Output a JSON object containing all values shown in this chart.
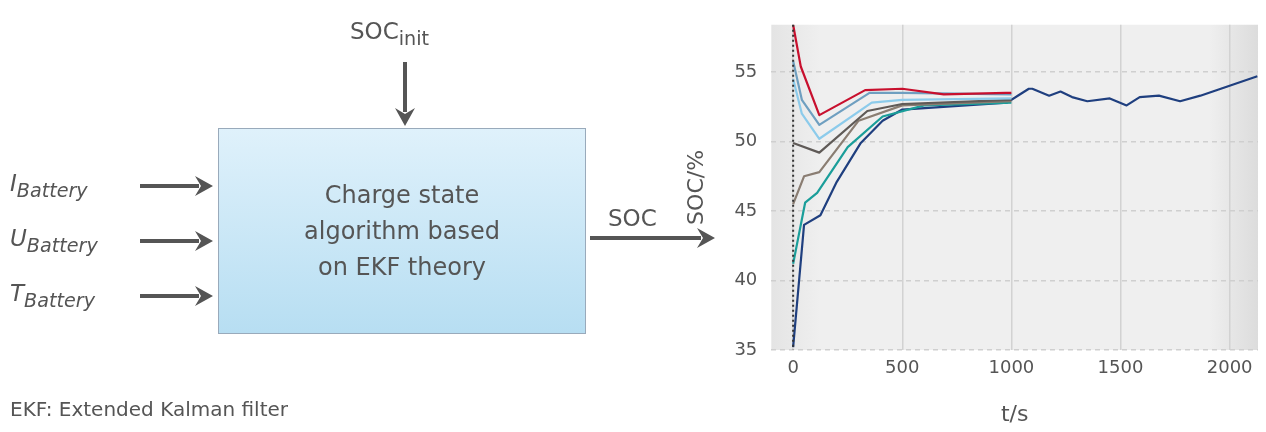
{
  "chart_data": {
    "type": "line",
    "xlabel": "t/s",
    "ylabel": "SOC/%",
    "xlim": [
      -100,
      2130
    ],
    "xticks": [
      0,
      500,
      1000,
      1500,
      2000
    ],
    "ylim": [
      35,
      58.4
    ],
    "yticks": [
      35,
      40,
      45,
      50,
      55
    ],
    "grid": true,
    "legend": false,
    "marker": "none",
    "line_style": "solid",
    "ref_lines": [
      {
        "axis": "x",
        "value": 0,
        "line_style": "dotted",
        "color": "#333333"
      }
    ],
    "annotations": [
      "SOC$_{init}$",
      "I$_{Battery}$",
      "U$_{Battery}$",
      "T$_{Battery}$",
      "Charge state algorithm based on EKF theory",
      "SOC",
      "EKF: Extended Kalman filter"
    ],
    "series": [
      {
        "color": "#c8102e",
        "x": [
          0,
          35,
          120,
          330,
          500,
          690,
          975,
          1000
        ],
        "values": [
          58.4,
          55.4,
          51.9,
          53.7,
          53.8,
          53.4,
          53.5,
          53.5
        ]
      },
      {
        "color": "#6f9fc0",
        "x": [
          0,
          40,
          120,
          350,
          500,
          1000
        ],
        "values": [
          55.8,
          53.0,
          51.2,
          53.5,
          53.5,
          53.4
        ]
      },
      {
        "color": "#8ccbeb",
        "x": [
          0,
          40,
          120,
          360,
          500,
          1000
        ],
        "values": [
          54.5,
          52.0,
          50.2,
          52.8,
          53.0,
          53.1
        ]
      },
      {
        "color": "#5f5a57",
        "x": [
          0,
          120,
          340,
          500,
          1000
        ],
        "values": [
          49.9,
          49.2,
          52.2,
          52.7,
          53.0
        ]
      },
      {
        "color": "#8a7d72",
        "x": [
          0,
          50,
          120,
          300,
          500,
          1000
        ],
        "values": [
          45.5,
          47.5,
          47.8,
          51.5,
          52.6,
          52.9
        ]
      },
      {
        "color": "#1a9e9a",
        "x": [
          0,
          55,
          110,
          250,
          410,
          600,
          1000
        ],
        "values": [
          41.2,
          45.6,
          46.3,
          49.6,
          51.8,
          52.6,
          52.8
        ]
      },
      {
        "color": "#1f3f7f",
        "x": [
          0,
          50,
          125,
          200,
          310,
          410,
          500,
          980,
          1080,
          1096,
          1173,
          1225,
          1278,
          1348,
          1451,
          1528,
          1588,
          1676,
          1773,
          1866,
          2127
        ],
        "values": [
          35.2,
          44.0,
          44.7,
          47.1,
          49.9,
          51.5,
          52.3,
          52.8,
          53.8,
          53.8,
          53.3,
          53.6,
          53.2,
          52.9,
          53.1,
          52.6,
          53.2,
          53.3,
          52.9,
          53.3,
          54.7
        ]
      }
    ]
  }
}
